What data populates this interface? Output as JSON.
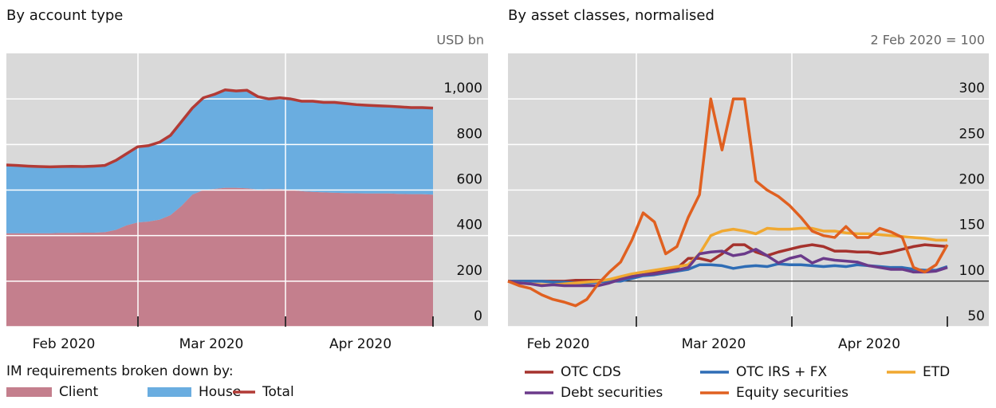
{
  "chart_data": [
    {
      "type": "area",
      "title": "By account type",
      "unit_label": "USD bn",
      "x_labels": [
        "Feb 2020",
        "Mar 2020",
        "Apr 2020"
      ],
      "ylim": [
        0,
        1200
      ],
      "yticks": [
        0,
        200,
        400,
        600,
        800,
        {
          "value": 1000,
          "label": "1,000"
        }
      ],
      "grid": true,
      "legend_title": "IM requirements broken down by:",
      "series": [
        {
          "name": "Client",
          "kind": "area",
          "color": "#c47f8d",
          "values": [
            410,
            410,
            410,
            410,
            410,
            412,
            412,
            413,
            413,
            415,
            425,
            445,
            458,
            462,
            470,
            490,
            530,
            580,
            600,
            605,
            610,
            610,
            608,
            602,
            605,
            605,
            600,
            595,
            592,
            590,
            588,
            587,
            586,
            585,
            585,
            585,
            583,
            582,
            582,
            580
          ]
        },
        {
          "name": "House",
          "kind": "area",
          "color": "#6aade0",
          "values": [
            300,
            298,
            295,
            293,
            292,
            291,
            292,
            290,
            292,
            293,
            305,
            315,
            332,
            333,
            340,
            350,
            370,
            380,
            405,
            415,
            430,
            425,
            430,
            408,
            395,
            400,
            400,
            395,
            398,
            395,
            397,
            393,
            389,
            387,
            385,
            383,
            382,
            380,
            380,
            380
          ]
        },
        {
          "name": "Total",
          "kind": "line",
          "color": "#b23b36",
          "values": [
            710,
            708,
            705,
            703,
            702,
            703,
            704,
            703,
            705,
            708,
            730,
            760,
            790,
            795,
            810,
            840,
            900,
            960,
            1005,
            1020,
            1040,
            1035,
            1038,
            1010,
            1000,
            1005,
            1000,
            990,
            990,
            985,
            985,
            980,
            975,
            972,
            970,
            968,
            965,
            962,
            962,
            960
          ]
        }
      ]
    },
    {
      "type": "line",
      "title": "By asset classes, normalised",
      "unit_label": "2 Feb 2020 = 100",
      "x_labels": [
        "Feb 2020",
        "Mar 2020",
        "Apr 2020"
      ],
      "ylim": [
        50,
        350
      ],
      "yticks": [
        50,
        100,
        150,
        200,
        250,
        300
      ],
      "grid": true,
      "reference_line": 100,
      "series": [
        {
          "name": "OTC CDS",
          "color": "#a5322d",
          "values": [
            100,
            100,
            100,
            100,
            100,
            100,
            101,
            101,
            101,
            101,
            102,
            106,
            108,
            110,
            112,
            114,
            125,
            125,
            122,
            130,
            140,
            140,
            132,
            128,
            132,
            135,
            138,
            140,
            138,
            133,
            133,
            132,
            132,
            130,
            132,
            135,
            138,
            140,
            139,
            138
          ]
        },
        {
          "name": "OTC IRS + FX",
          "color": "#2f6db5",
          "values": [
            100,
            100,
            100,
            100,
            99,
            99,
            98,
            98,
            99,
            100,
            100,
            103,
            106,
            107,
            109,
            111,
            113,
            118,
            118,
            117,
            114,
            116,
            117,
            116,
            119,
            118,
            118,
            117,
            116,
            117,
            116,
            118,
            117,
            116,
            115,
            115,
            113,
            112,
            112,
            116
          ]
        },
        {
          "name": "ETD",
          "color": "#f0a830",
          "values": [
            100,
            98,
            97,
            96,
            96,
            97,
            98,
            99,
            100,
            102,
            105,
            108,
            110,
            112,
            114,
            116,
            118,
            130,
            150,
            155,
            157,
            155,
            152,
            158,
            157,
            157,
            158,
            158,
            155,
            155,
            153,
            152,
            152,
            151,
            150,
            149,
            148,
            147,
            145,
            145
          ]
        },
        {
          "name": "Debt securities",
          "color": "#6b3a8a",
          "values": [
            100,
            98,
            97,
            95,
            96,
            95,
            95,
            95,
            95,
            98,
            102,
            105,
            107,
            108,
            110,
            112,
            115,
            130,
            132,
            133,
            128,
            130,
            135,
            128,
            120,
            125,
            128,
            120,
            125,
            123,
            122,
            121,
            117,
            115,
            113,
            113,
            110,
            110,
            111,
            115
          ]
        },
        {
          "name": "Equity securities",
          "color": "#e06020",
          "values": [
            100,
            95,
            92,
            85,
            80,
            77,
            73,
            80,
            97,
            110,
            121,
            145,
            175,
            165,
            130,
            138,
            170,
            195,
            300,
            244,
            300,
            300,
            210,
            200,
            193,
            183,
            170,
            155,
            150,
            148,
            160,
            148,
            148,
            158,
            154,
            148,
            115,
            110,
            118,
            140
          ]
        }
      ]
    }
  ]
}
